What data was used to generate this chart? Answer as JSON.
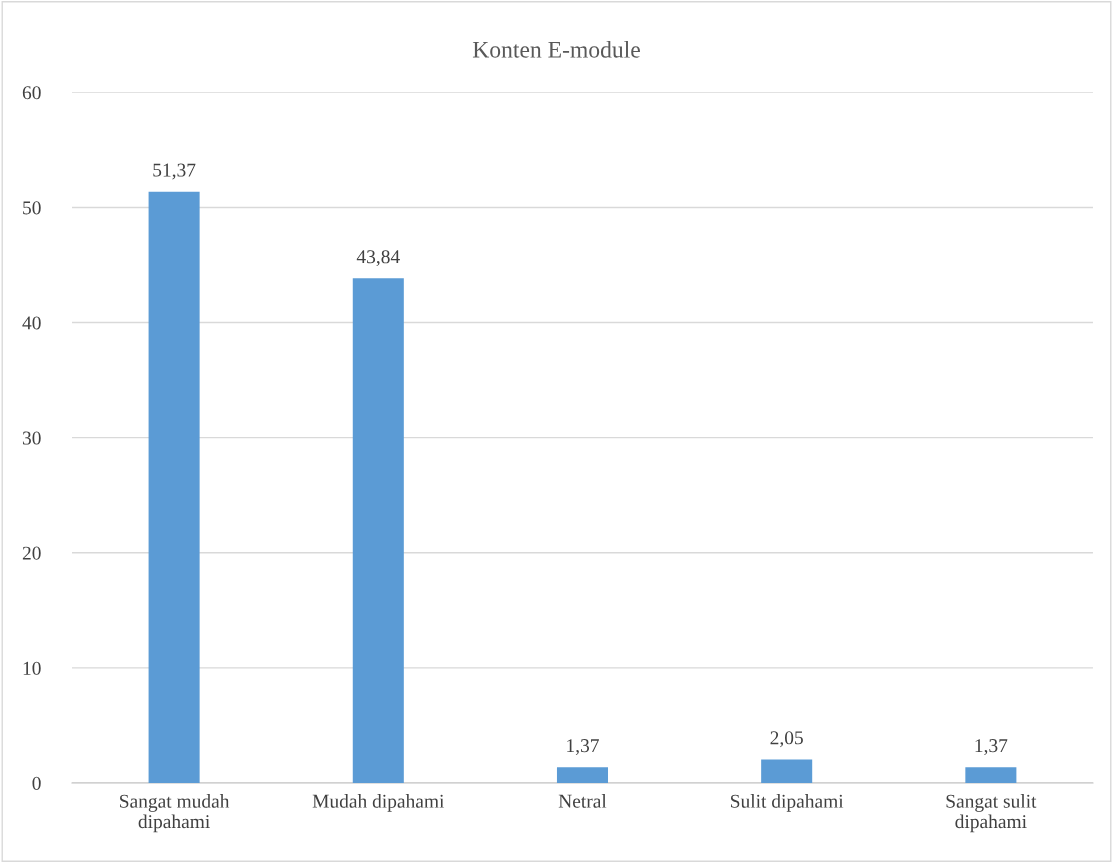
{
  "chart_data": {
    "type": "bar",
    "title": "Konten E-module",
    "categories": [
      "Sangat mudah\ndipahami",
      "Mudah dipahami",
      "Netral",
      "Sulit dipahami",
      "Sangat sulit\ndipahami"
    ],
    "values": [
      51.37,
      43.84,
      1.37,
      2.05,
      1.37
    ],
    "value_labels": [
      "51,37",
      "43,84",
      "1,37",
      "2,05",
      "1,37"
    ],
    "color": "#5b9bd5",
    "ylim": [
      0,
      60
    ],
    "yticks": [
      0,
      10,
      20,
      30,
      40,
      50,
      60
    ],
    "grid": "y",
    "legend": false
  }
}
